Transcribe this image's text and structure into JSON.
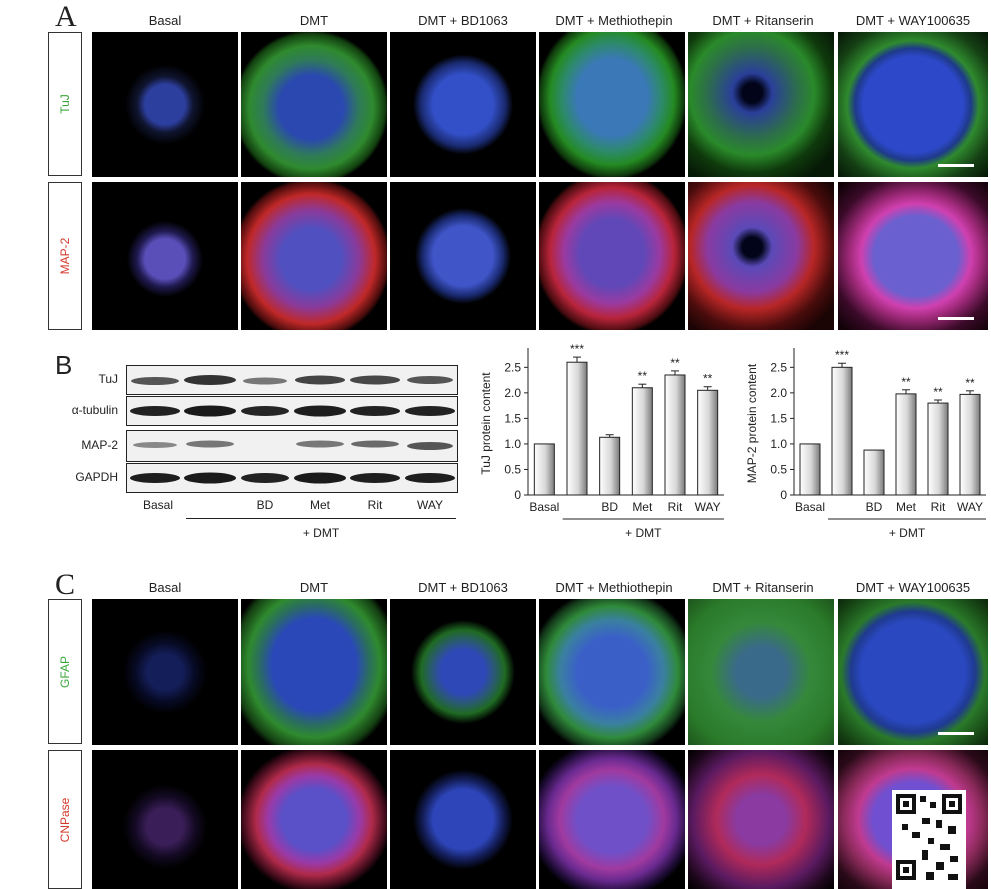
{
  "panelA": {
    "label": "A",
    "columns": [
      "Basal",
      "DMT",
      "DMT + BD1063",
      "DMT + Methiothepin",
      "DMT + Ritanserin",
      "DMT + WAY100635"
    ],
    "rows": [
      {
        "label": "TuJ",
        "color": "#3aa63a"
      },
      {
        "label": "MAP-2",
        "color": "#d23a2a"
      }
    ]
  },
  "panelB": {
    "label": "B",
    "blot_rows": [
      "TuJ",
      "α-tubulin",
      "MAP-2",
      "GAPDH"
    ],
    "lanes": [
      "Basal",
      "",
      "BD",
      "Met",
      "Rit",
      "WAY"
    ],
    "treatment": "+ DMT"
  },
  "panelC": {
    "label": "C",
    "columns": [
      "Basal",
      "DMT",
      "DMT + BD1063",
      "DMT + Methiothepin",
      "DMT + Ritanserin",
      "DMT + WAY100635"
    ],
    "rows": [
      {
        "label": "GFAP",
        "color": "#3aa63a"
      },
      {
        "label": "CNPase",
        "color": "#d23a2a"
      }
    ]
  },
  "chart_data": [
    {
      "type": "bar",
      "ylabel": "TuJ protein content",
      "categories": [
        "Basal",
        "",
        "BD",
        "Met",
        "Rit",
        "WAY"
      ],
      "values": [
        1.0,
        2.6,
        1.13,
        2.1,
        2.35,
        2.05
      ],
      "errors": [
        0.02,
        0.1,
        0.05,
        0.07,
        0.08,
        0.07
      ],
      "significance": [
        "",
        "***",
        "",
        "**",
        "**",
        "**"
      ],
      "ylim": [
        0,
        2.8
      ],
      "yticks": [
        "0",
        "0.5",
        "1.0",
        "1.5",
        "2.0",
        "2.5"
      ],
      "group_label": "+ DMT"
    },
    {
      "type": "bar",
      "ylabel": "MAP-2 protein content",
      "categories": [
        "Basal",
        "",
        "BD",
        "Met",
        "Rit",
        "WAY"
      ],
      "values": [
        1.0,
        2.5,
        0.88,
        1.98,
        1.8,
        1.97
      ],
      "errors": [
        0.02,
        0.08,
        0.03,
        0.08,
        0.06,
        0.07
      ],
      "significance": [
        "",
        "***",
        "",
        "**",
        "**",
        "**"
      ],
      "ylim": [
        0,
        2.8
      ],
      "yticks": [
        "0",
        "0.5",
        "1.0",
        "1.5",
        "2.0",
        "2.5"
      ],
      "group_label": "+ DMT"
    }
  ]
}
